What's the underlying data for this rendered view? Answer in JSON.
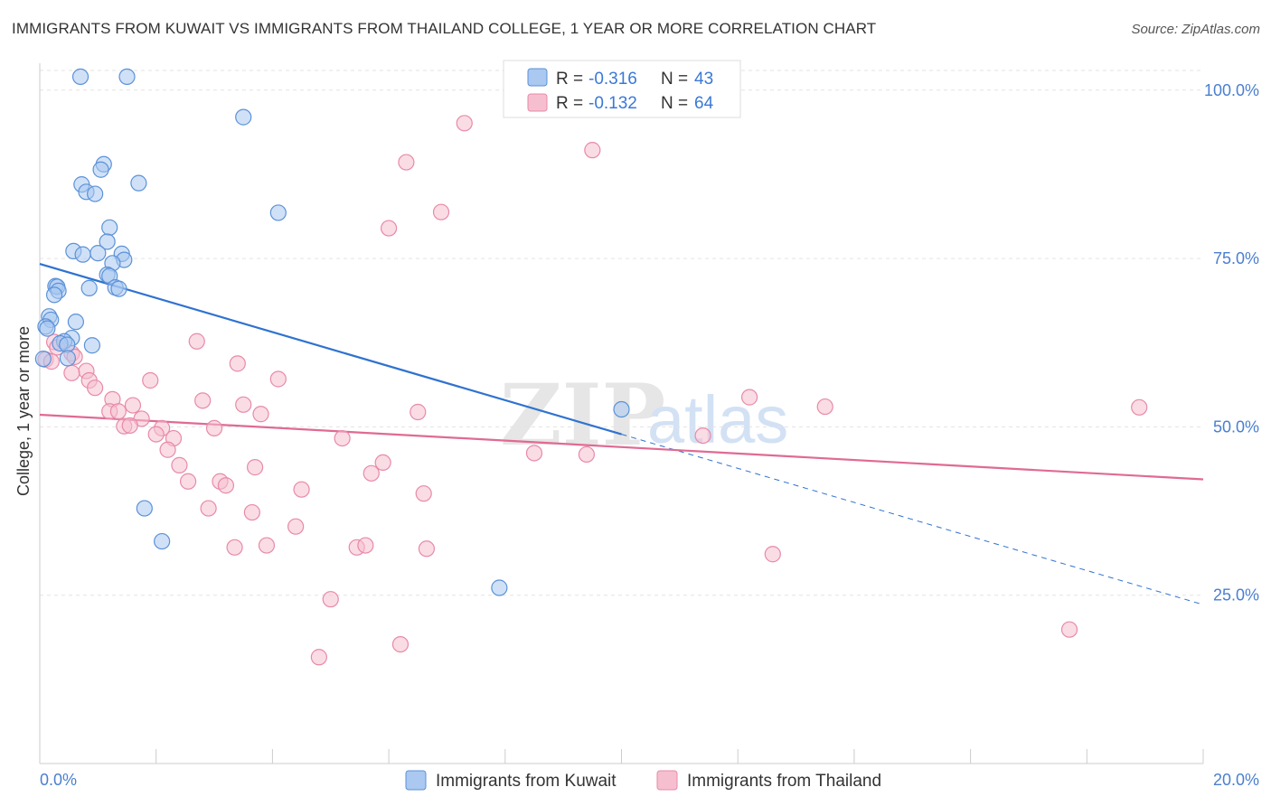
{
  "title": "IMMIGRANTS FROM KUWAIT VS IMMIGRANTS FROM THAILAND COLLEGE, 1 YEAR OR MORE CORRELATION CHART",
  "source": "Source: ZipAtlas.com",
  "watermark": {
    "zip": "ZIP",
    "atlas": "atlas"
  },
  "colors": {
    "kuwait_fill": "#aac8f0",
    "kuwait_stroke": "#5b92d8",
    "kuwait_line": "#2f72d0",
    "thailand_fill": "#f6bfd0",
    "thailand_stroke": "#e88aa8",
    "thailand_line": "#e06a94",
    "axis_label": "#4a7fd0",
    "grid": "#e3e3e3"
  },
  "legend_box": {
    "rows": [
      {
        "r_label": "R =",
        "r_value": "-0.316",
        "n_label": "N =",
        "n_value": "43"
      },
      {
        "r_label": "R =",
        "r_value": "-0.132",
        "n_label": "N =",
        "n_value": "64"
      }
    ]
  },
  "chart_data": {
    "type": "scatter",
    "title": "IMMIGRANTS FROM KUWAIT VS IMMIGRANTS FROM THAILAND COLLEGE, 1 YEAR OR MORE CORRELATION CHART",
    "xlabel": "",
    "ylabel": "College, 1 year or more",
    "xlim": [
      0,
      20
    ],
    "ylim": [
      0,
      104
    ],
    "x_tick_labels": [
      "0.0%",
      "20.0%"
    ],
    "y_ticks": [
      25,
      50,
      75,
      100
    ],
    "y_tick_labels": [
      "25.0%",
      "50.0%",
      "75.0%",
      "100.0%"
    ],
    "grid": true,
    "legend_position": "top-center",
    "series": [
      {
        "name": "Immigrants from Kuwait",
        "R": -0.316,
        "N": 43,
        "trend": {
          "x0": 0,
          "y0": 74.2,
          "x_solid_end": 10.0,
          "x1": 20,
          "y1": 23.6
        },
        "points": [
          [
            0.7,
            102
          ],
          [
            1.5,
            102
          ],
          [
            3.5,
            96
          ],
          [
            1.1,
            89
          ],
          [
            1.05,
            88.2
          ],
          [
            1.7,
            86.2
          ],
          [
            0.72,
            86.0
          ],
          [
            0.8,
            84.9
          ],
          [
            0.95,
            84.6
          ],
          [
            4.1,
            81.8
          ],
          [
            1.2,
            79.6
          ],
          [
            1.16,
            77.5
          ],
          [
            0.58,
            76.1
          ],
          [
            0.74,
            75.6
          ],
          [
            1.0,
            75.8
          ],
          [
            1.41,
            75.7
          ],
          [
            1.45,
            74.8
          ],
          [
            1.25,
            74.3
          ],
          [
            1.16,
            72.6
          ],
          [
            1.2,
            72.4
          ],
          [
            0.85,
            70.6
          ],
          [
            0.27,
            70.9
          ],
          [
            0.3,
            70.8
          ],
          [
            0.32,
            70.2
          ],
          [
            0.25,
            69.6
          ],
          [
            1.3,
            70.7
          ],
          [
            1.36,
            70.5
          ],
          [
            0.16,
            66.4
          ],
          [
            0.19,
            65.9
          ],
          [
            0.62,
            65.6
          ],
          [
            0.1,
            64.9
          ],
          [
            0.13,
            64.6
          ],
          [
            0.55,
            63.2
          ],
          [
            0.42,
            62.7
          ],
          [
            0.35,
            62.4
          ],
          [
            0.9,
            62.1
          ],
          [
            0.47,
            62.2
          ],
          [
            0.48,
            60.2
          ],
          [
            0.06,
            60.1
          ],
          [
            10.0,
            52.6
          ],
          [
            1.8,
            37.9
          ],
          [
            2.1,
            33.0
          ],
          [
            7.9,
            26.1
          ]
        ]
      },
      {
        "name": "Immigrants from Thailand",
        "R": -0.132,
        "N": 64,
        "trend": {
          "x0": 0,
          "y0": 51.8,
          "x1": 20,
          "y1": 42.2
        },
        "points": [
          [
            7.3,
            95.1
          ],
          [
            9.5,
            91.1
          ],
          [
            6.3,
            89.3
          ],
          [
            6.9,
            81.9
          ],
          [
            6.0,
            79.5
          ],
          [
            2.7,
            62.7
          ],
          [
            0.25,
            62.6
          ],
          [
            0.3,
            61.8
          ],
          [
            0.55,
            60.9
          ],
          [
            0.6,
            60.4
          ],
          [
            0.1,
            60.0
          ],
          [
            0.2,
            59.7
          ],
          [
            3.4,
            59.4
          ],
          [
            0.8,
            58.3
          ],
          [
            0.55,
            58.0
          ],
          [
            0.85,
            56.9
          ],
          [
            1.9,
            56.9
          ],
          [
            4.1,
            57.1
          ],
          [
            0.95,
            55.8
          ],
          [
            1.25,
            54.1
          ],
          [
            2.8,
            53.9
          ],
          [
            3.5,
            53.3
          ],
          [
            1.6,
            53.2
          ],
          [
            12.2,
            54.4
          ],
          [
            13.5,
            53.0
          ],
          [
            18.9,
            52.9
          ],
          [
            1.2,
            52.3
          ],
          [
            1.35,
            52.3
          ],
          [
            3.8,
            51.9
          ],
          [
            6.5,
            52.2
          ],
          [
            1.75,
            51.2
          ],
          [
            1.45,
            50.1
          ],
          [
            1.55,
            50.2
          ],
          [
            2.1,
            49.8
          ],
          [
            3.0,
            49.8
          ],
          [
            2.0,
            48.9
          ],
          [
            2.3,
            48.3
          ],
          [
            5.2,
            48.3
          ],
          [
            11.4,
            48.7
          ],
          [
            2.2,
            46.6
          ],
          [
            8.5,
            46.1
          ],
          [
            9.4,
            45.9
          ],
          [
            2.4,
            44.3
          ],
          [
            3.7,
            44.0
          ],
          [
            5.9,
            44.7
          ],
          [
            5.7,
            43.1
          ],
          [
            2.55,
            41.9
          ],
          [
            3.1,
            41.9
          ],
          [
            3.2,
            41.3
          ],
          [
            4.5,
            40.7
          ],
          [
            6.6,
            40.1
          ],
          [
            2.9,
            37.9
          ],
          [
            3.65,
            37.3
          ],
          [
            4.4,
            35.2
          ],
          [
            3.35,
            32.1
          ],
          [
            3.9,
            32.4
          ],
          [
            5.45,
            32.1
          ],
          [
            5.6,
            32.4
          ],
          [
            6.65,
            31.9
          ],
          [
            12.6,
            31.1
          ],
          [
            5.0,
            24.4
          ],
          [
            17.7,
            19.9
          ],
          [
            6.2,
            17.7
          ],
          [
            4.8,
            15.8
          ]
        ]
      }
    ]
  },
  "bottom_legend": [
    {
      "label": "Immigrants from Kuwait"
    },
    {
      "label": "Immigrants from Thailand"
    }
  ]
}
